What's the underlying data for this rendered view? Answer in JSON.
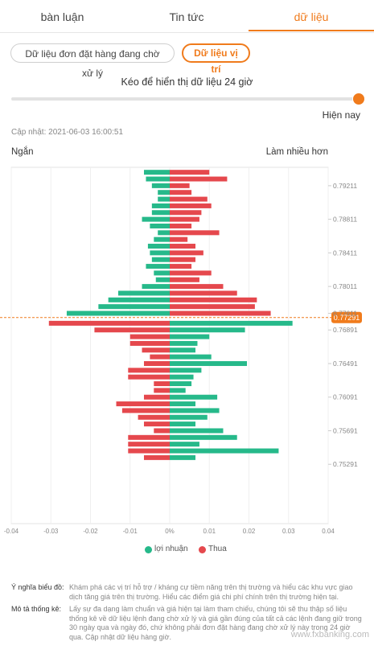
{
  "tabs": [
    {
      "label": "bàn luận",
      "active": false
    },
    {
      "label": "Tin tức",
      "active": false
    },
    {
      "label": "dữ liệu",
      "active": true
    }
  ],
  "subtabs": {
    "pending_orders": "Dữ liệu đơn đặt hàng đang chờ xử lý",
    "positions": "Dữ liệu vị trí"
  },
  "slider": {
    "label": "Kéo để hiển thị dữ liệu 24 giờ",
    "now_label": "Hiện nay"
  },
  "updated": "Cập nhật: 2021-06-03 16:00:51",
  "side_labels": {
    "short": "Ngắn",
    "long": "Làm nhiều hơn"
  },
  "colors": {
    "profit": "#26b98a",
    "loss": "#e5484d",
    "accent": "#f07b1c"
  },
  "legend": {
    "profit": "lợi nhuận",
    "loss": "Thua"
  },
  "notes": [
    {
      "key": "Ý nghĩa biểu đồ:",
      "text": "Khám phá các vị trí hỗ trợ / kháng cự tiềm năng trên thị trường và hiểu các khu vực giao dịch tăng giá trên thị trường. Hiểu các điểm giá chi phí chính trên thị trường hiện tại."
    },
    {
      "key": "Mô tả thống kê:",
      "text": "Lấy sự đa dạng làm chuẩn và giá hiện tại làm tham chiếu, chúng tôi sẽ thu thập số liệu thống kê về dữ liệu lệnh đang chờ xử lý và giá gần đúng của tất cả các lệnh đang giữ trong 30 ngày qua và ngày đó, chứ không phải đơn đặt hàng đang chờ xử lý này trong 24 giờ qua. Cập nhật dữ liệu hàng giờ."
    }
  ],
  "watermark": "www.fxbanking.com",
  "chart_data": {
    "type": "bar",
    "orientation": "horizontal-diverging",
    "current_price": "0.77291",
    "price_ticks": [
      "0.79211",
      "0.78811",
      "0.78411",
      "0.78011",
      "0.77611",
      "0.76891",
      "0.76491",
      "0.76091",
      "0.75691",
      "0.75291"
    ],
    "x_ticks": [
      "-0.04",
      "-0.03",
      "-0.02",
      "-0.01",
      "0%",
      "0.01",
      "0.02",
      "0.03",
      "0.04"
    ],
    "xlim": [
      -0.04,
      0.04
    ],
    "left_label": "Ngắn",
    "right_label": "Làm nhiều hơn",
    "upper_note": "above current price: left = profit (short), right = loss (long)",
    "upper": {
      "short_profit": [
        -0.0065,
        -0.006,
        -0.0045,
        -0.003,
        -0.003,
        -0.0045,
        -0.0045,
        -0.007,
        -0.005,
        -0.003,
        -0.004,
        -0.0055,
        -0.005,
        -0.0045,
        -0.006,
        -0.004,
        -0.0035,
        -0.007,
        -0.013,
        -0.0155,
        -0.018,
        -0.026
      ],
      "long_loss": [
        0.01,
        0.0145,
        0.005,
        0.0055,
        0.0095,
        0.0105,
        0.008,
        0.0075,
        0.0055,
        0.0125,
        0.0045,
        0.0065,
        0.0085,
        0.0065,
        0.0055,
        0.0105,
        0.0075,
        0.0135,
        0.017,
        0.022,
        0.0215,
        0.0255
      ]
    },
    "lower": {
      "long_profit": [
        0.031,
        0.019,
        0.01,
        0.007,
        0.0065,
        0.0105,
        0.0195,
        0.008,
        0.006,
        0.0055,
        0.004,
        0.012,
        0.0065,
        0.0125,
        0.0095,
        0.0065,
        0.0135,
        0.017,
        0.0075,
        0.0275,
        0.0065
      ],
      "short_loss": [
        -0.0305,
        -0.019,
        -0.01,
        -0.01,
        -0.007,
        -0.005,
        -0.0065,
        -0.0105,
        -0.0105,
        -0.004,
        -0.004,
        -0.0065,
        -0.0135,
        -0.012,
        -0.008,
        -0.0065,
        -0.004,
        -0.0105,
        -0.0105,
        -0.0105,
        -0.0065
      ]
    }
  }
}
